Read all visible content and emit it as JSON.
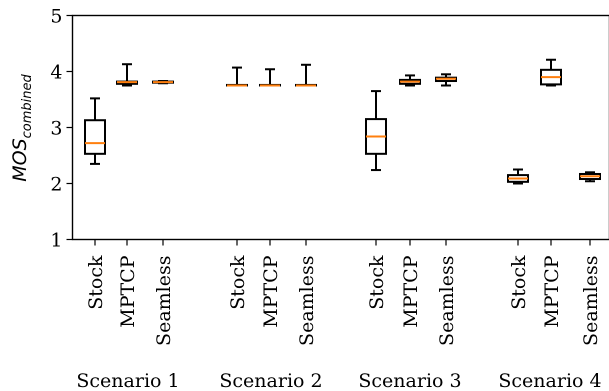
{
  "chart_data": {
    "type": "box",
    "ylabel": "MOS",
    "ylabel_sub": "combined",
    "ylim": [
      1,
      5
    ],
    "yticks": [
      "1",
      "2",
      "3",
      "4",
      "5"
    ],
    "groups": [
      "Scenario 1",
      "Scenario 2",
      "Scenario 3",
      "Scenario 4"
    ],
    "categories": [
      "Stock",
      "MPTCP",
      "Seamless"
    ],
    "colors": {
      "box": "#000000",
      "median": "#ff7f0e"
    },
    "boxes": [
      {
        "group": "Scenario 1",
        "category": "Stock",
        "whisker_low": 2.35,
        "q1": 2.53,
        "median": 2.72,
        "q3": 3.13,
        "whisker_high": 3.52
      },
      {
        "group": "Scenario 1",
        "category": "MPTCP",
        "whisker_low": 3.75,
        "q1": 3.78,
        "median": 3.81,
        "q3": 3.82,
        "whisker_high": 4.13
      },
      {
        "group": "Scenario 1",
        "category": "Seamless",
        "whisker_low": 3.79,
        "q1": 3.8,
        "median": 3.81,
        "q3": 3.82,
        "whisker_high": 3.83
      },
      {
        "group": "Scenario 2",
        "category": "Stock",
        "whisker_low": 3.75,
        "q1": 3.75,
        "median": 3.75,
        "q3": 3.76,
        "whisker_high": 4.07
      },
      {
        "group": "Scenario 2",
        "category": "MPTCP",
        "whisker_low": 3.75,
        "q1": 3.75,
        "median": 3.75,
        "q3": 3.76,
        "whisker_high": 4.04
      },
      {
        "group": "Scenario 2",
        "category": "Seamless",
        "whisker_low": 3.75,
        "q1": 3.75,
        "median": 3.75,
        "q3": 3.76,
        "whisker_high": 4.12
      },
      {
        "group": "Scenario 3",
        "category": "Stock",
        "whisker_low": 2.24,
        "q1": 2.53,
        "median": 2.84,
        "q3": 3.15,
        "whisker_high": 3.65
      },
      {
        "group": "Scenario 3",
        "category": "MPTCP",
        "whisker_low": 3.75,
        "q1": 3.78,
        "median": 3.82,
        "q3": 3.85,
        "whisker_high": 3.93
      },
      {
        "group": "Scenario 3",
        "category": "Seamless",
        "whisker_low": 3.75,
        "q1": 3.83,
        "median": 3.87,
        "q3": 3.89,
        "whisker_high": 3.95
      },
      {
        "group": "Scenario 4",
        "category": "Stock",
        "whisker_low": 2.0,
        "q1": 2.03,
        "median": 2.09,
        "q3": 2.15,
        "whisker_high": 2.25
      },
      {
        "group": "Scenario 4",
        "category": "MPTCP",
        "whisker_low": 3.75,
        "q1": 3.77,
        "median": 3.9,
        "q3": 4.03,
        "whisker_high": 4.21
      },
      {
        "group": "Scenario 4",
        "category": "Seamless",
        "whisker_low": 2.04,
        "q1": 2.08,
        "median": 2.13,
        "q3": 2.17,
        "whisker_high": 2.2
      }
    ]
  }
}
